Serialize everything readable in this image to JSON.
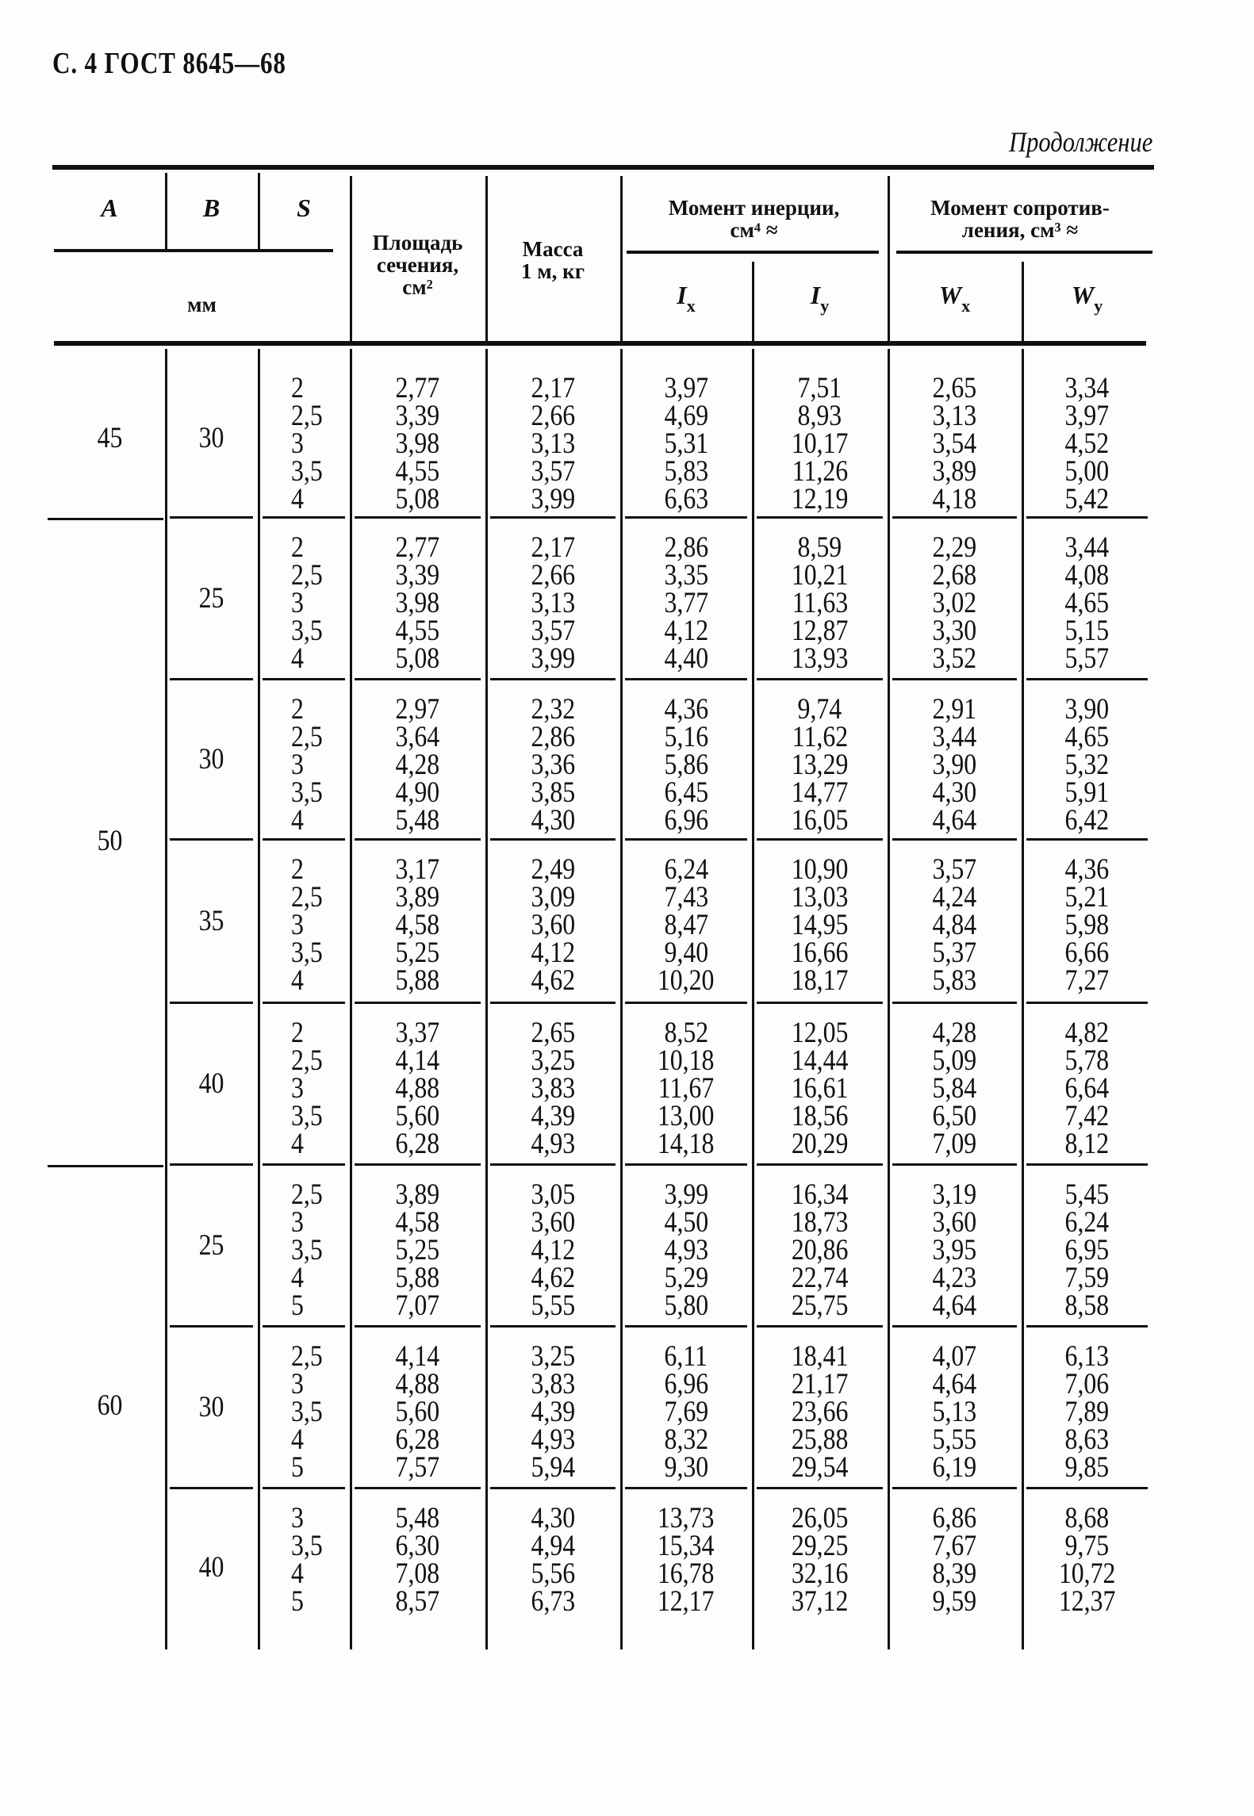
{
  "page_header": "С. 4 ГОСТ 8645—68",
  "continuation_label": "Продолжение",
  "table": {
    "headers": {
      "A": "A",
      "B": "B",
      "S": "S",
      "unit_mm": "мм",
      "area": [
        "Площадь",
        "сечения,",
        "см²"
      ],
      "mass": [
        "Масса",
        "1 м, кг"
      ],
      "inertia": [
        "Момент инерции,",
        "см⁴ ≈"
      ],
      "section_modulus": [
        "Момент сопротив-",
        "ления, см³ ≈"
      ],
      "Ix": {
        "main": "I",
        "sub": "x"
      },
      "Iy": {
        "main": "I",
        "sub": "y"
      },
      "Wx": {
        "main": "W",
        "sub": "x"
      },
      "Wy": {
        "main": "W",
        "sub": "y"
      }
    },
    "groups": [
      {
        "A": "45",
        "blocks": [
          {
            "B": "30",
            "S": [
              "2",
              "2,5",
              "3",
              "3,5",
              "4"
            ],
            "area": [
              "2,77",
              "3,39",
              "3,98",
              "4,55",
              "5,08"
            ],
            "mass": [
              "2,17",
              "2,66",
              "3,13",
              "3,57",
              "3,99"
            ],
            "Ix": [
              "3,97",
              "4,69",
              "5,31",
              "5,83",
              "6,63"
            ],
            "Iy": [
              "7,51",
              "8,93",
              "10,17",
              "11,26",
              "12,19"
            ],
            "Wx": [
              "2,65",
              "3,13",
              "3,54",
              "3,89",
              "4,18"
            ],
            "Wy": [
              "3,34",
              "3,97",
              "4,52",
              "5,00",
              "5,42"
            ]
          }
        ]
      },
      {
        "A": "50",
        "blocks": [
          {
            "B": "25",
            "S": [
              "2",
              "2,5",
              "3",
              "3,5",
              "4"
            ],
            "area": [
              "2,77",
              "3,39",
              "3,98",
              "4,55",
              "5,08"
            ],
            "mass": [
              "2,17",
              "2,66",
              "3,13",
              "3,57",
              "3,99"
            ],
            "Ix": [
              "2,86",
              "3,35",
              "3,77",
              "4,12",
              "4,40"
            ],
            "Iy": [
              "8,59",
              "10,21",
              "11,63",
              "12,87",
              "13,93"
            ],
            "Wx": [
              "2,29",
              "2,68",
              "3,02",
              "3,30",
              "3,52"
            ],
            "Wy": [
              "3,44",
              "4,08",
              "4,65",
              "5,15",
              "5,57"
            ]
          },
          {
            "B": "30",
            "S": [
              "2",
              "2,5",
              "3",
              "3,5",
              "4"
            ],
            "area": [
              "2,97",
              "3,64",
              "4,28",
              "4,90",
              "5,48"
            ],
            "mass": [
              "2,32",
              "2,86",
              "3,36",
              "3,85",
              "4,30"
            ],
            "Ix": [
              "4,36",
              "5,16",
              "5,86",
              "6,45",
              "6,96"
            ],
            "Iy": [
              "9,74",
              "11,62",
              "13,29",
              "14,77",
              "16,05"
            ],
            "Wx": [
              "2,91",
              "3,44",
              "3,90",
              "4,30",
              "4,64"
            ],
            "Wy": [
              "3,90",
              "4,65",
              "5,32",
              "5,91",
              "6,42"
            ]
          },
          {
            "B": "35",
            "S": [
              "2",
              "2,5",
              "3",
              "3,5",
              "4"
            ],
            "area": [
              "3,17",
              "3,89",
              "4,58",
              "5,25",
              "5,88"
            ],
            "mass": [
              "2,49",
              "3,09",
              "3,60",
              "4,12",
              "4,62"
            ],
            "Ix": [
              "6,24",
              "7,43",
              "8,47",
              "9,40",
              "10,20"
            ],
            "Iy": [
              "10,90",
              "13,03",
              "14,95",
              "16,66",
              "18,17"
            ],
            "Wx": [
              "3,57",
              "4,24",
              "4,84",
              "5,37",
              "5,83"
            ],
            "Wy": [
              "4,36",
              "5,21",
              "5,98",
              "6,66",
              "7,27"
            ]
          },
          {
            "B": "40",
            "S": [
              "2",
              "2,5",
              "3",
              "3,5",
              "4"
            ],
            "area": [
              "3,37",
              "4,14",
              "4,88",
              "5,60",
              "6,28"
            ],
            "mass": [
              "2,65",
              "3,25",
              "3,83",
              "4,39",
              "4,93"
            ],
            "Ix": [
              "8,52",
              "10,18",
              "11,67",
              "13,00",
              "14,18"
            ],
            "Iy": [
              "12,05",
              "14,44",
              "16,61",
              "18,56",
              "20,29"
            ],
            "Wx": [
              "4,28",
              "5,09",
              "5,84",
              "6,50",
              "7,09"
            ],
            "Wy": [
              "4,82",
              "5,78",
              "6,64",
              "7,42",
              "8,12"
            ]
          }
        ]
      },
      {
        "A": "60",
        "blocks": [
          {
            "B": "25",
            "S": [
              "2,5",
              "3",
              "3,5",
              "4",
              "5"
            ],
            "area": [
              "3,89",
              "4,58",
              "5,25",
              "5,88",
              "7,07"
            ],
            "mass": [
              "3,05",
              "3,60",
              "4,12",
              "4,62",
              "5,55"
            ],
            "Ix": [
              "3,99",
              "4,50",
              "4,93",
              "5,29",
              "5,80"
            ],
            "Iy": [
              "16,34",
              "18,73",
              "20,86",
              "22,74",
              "25,75"
            ],
            "Wx": [
              "3,19",
              "3,60",
              "3,95",
              "4,23",
              "4,64"
            ],
            "Wy": [
              "5,45",
              "6,24",
              "6,95",
              "7,59",
              "8,58"
            ]
          },
          {
            "B": "30",
            "S": [
              "2,5",
              "3",
              "3,5",
              "4",
              "5"
            ],
            "area": [
              "4,14",
              "4,88",
              "5,60",
              "6,28",
              "7,57"
            ],
            "mass": [
              "3,25",
              "3,83",
              "4,39",
              "4,93",
              "5,94"
            ],
            "Ix": [
              "6,11",
              "6,96",
              "7,69",
              "8,32",
              "9,30"
            ],
            "Iy": [
              "18,41",
              "21,17",
              "23,66",
              "25,88",
              "29,54"
            ],
            "Wx": [
              "4,07",
              "4,64",
              "5,13",
              "5,55",
              "6,19"
            ],
            "Wy": [
              "6,13",
              "7,06",
              "7,89",
              "8,63",
              "9,85"
            ]
          },
          {
            "B": "40",
            "S": [
              "3",
              "3,5",
              "4",
              "5"
            ],
            "area": [
              "5,48",
              "6,30",
              "7,08",
              "8,57"
            ],
            "mass": [
              "4,30",
              "4,94",
              "5,56",
              "6,73"
            ],
            "Ix": [
              "13,73",
              "15,34",
              "16,78",
              "12,17"
            ],
            "Iy": [
              "26,05",
              "29,25",
              "32,16",
              "37,12"
            ],
            "Wx": [
              "6,86",
              "7,67",
              "8,39",
              "9,59"
            ],
            "Wy": [
              "8,68",
              "9,75",
              "10,72",
              "12,37"
            ]
          }
        ]
      }
    ]
  }
}
